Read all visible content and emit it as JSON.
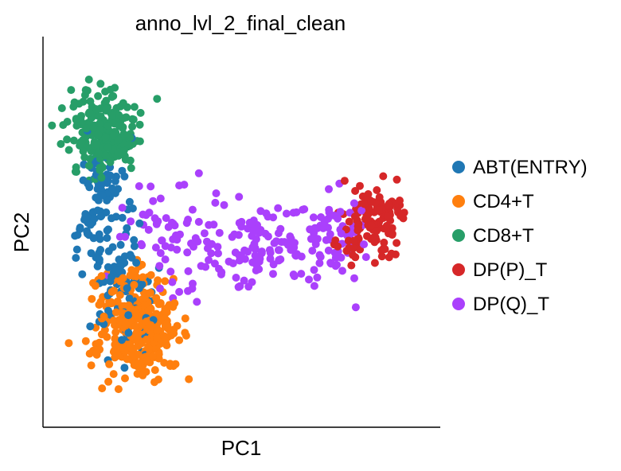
{
  "chart_data": {
    "type": "scatter",
    "title": "anno_lvl_2_final_clean",
    "xlabel": "PC1",
    "ylabel": "PC2",
    "xticks": [],
    "yticks": [],
    "grid": false,
    "legend_position": "right",
    "xlim": [
      0,
      100
    ],
    "ylim": [
      0,
      100
    ],
    "series": [
      {
        "name": "ABT(ENTRY)",
        "color": "#1f77b4",
        "clusters": [
          {
            "cx": 14,
            "cy": 58,
            "sx": 3.5,
            "sy": 9,
            "n": 90
          },
          {
            "cx": 20,
            "cy": 40,
            "sx": 4,
            "sy": 8,
            "n": 60
          },
          {
            "cx": 24,
            "cy": 25,
            "sx": 3,
            "sy": 5,
            "n": 25
          }
        ],
        "seed": 11
      },
      {
        "name": "CD4+T",
        "color": "#ff7f0e",
        "clusters": [
          {
            "cx": 24,
            "cy": 24,
            "sx": 5,
            "sy": 6,
            "n": 320
          },
          {
            "cx": 21,
            "cy": 36,
            "sx": 4,
            "sy": 3.5,
            "n": 40
          }
        ],
        "seed": 23
      },
      {
        "name": "CD8+T",
        "color": "#279e68",
        "clusters": [
          {
            "cx": 15,
            "cy": 77,
            "sx": 4.5,
            "sy": 5.5,
            "n": 230
          }
        ],
        "seed": 37
      },
      {
        "name": "DP(P)_T",
        "color": "#d62728",
        "clusters": [
          {
            "cx": 85,
            "cy": 55,
            "sx": 3.8,
            "sy": 5,
            "n": 110
          },
          {
            "cx": 78,
            "cy": 48,
            "sx": 3,
            "sy": 3,
            "n": 20
          }
        ],
        "seed": 53
      },
      {
        "name": "DP(Q)_T",
        "color": "#aa40fc",
        "clusters": [
          {
            "cx": 55,
            "cy": 48,
            "sx": 12,
            "sy": 6,
            "n": 160
          },
          {
            "cx": 30,
            "cy": 52,
            "sx": 6,
            "sy": 6,
            "n": 40
          },
          {
            "cx": 74,
            "cy": 50,
            "sx": 4,
            "sy": 5,
            "n": 40
          }
        ],
        "seed": 71
      }
    ]
  }
}
